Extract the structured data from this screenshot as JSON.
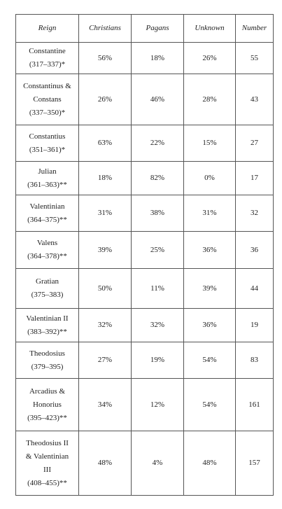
{
  "table": {
    "header": [
      "Reign",
      "Christians",
      "Pagans",
      "Unknown",
      "Number"
    ],
    "rows": [
      {
        "reign": [
          "Constantine",
          "(317–337)*"
        ],
        "cells": [
          "56%",
          "18%",
          "26%",
          "55"
        ]
      },
      {
        "reign": [
          "Constantinus &",
          "Constans",
          "(337–350)*"
        ],
        "cells": [
          "26%",
          "46%",
          "28%",
          "43"
        ]
      },
      {
        "reign": [
          "Constantius",
          "(351–361)*"
        ],
        "cells": [
          "63%",
          "22%",
          "15%",
          "27"
        ]
      },
      {
        "reign": [
          "Julian",
          "(361–363)**"
        ],
        "cells": [
          "18%",
          "82%",
          "0%",
          "17"
        ]
      },
      {
        "reign": [
          "Valentinian",
          "(364–375)**"
        ],
        "cells": [
          "31%",
          "38%",
          "31%",
          "32"
        ]
      },
      {
        "reign": [
          "Valens",
          "(364–378)**"
        ],
        "cells": [
          "39%",
          "25%",
          "36%",
          "36"
        ]
      },
      {
        "reign": [
          "Gratian",
          "(375–383)"
        ],
        "cells": [
          "50%",
          "11%",
          "39%",
          "44"
        ]
      },
      {
        "reign": [
          "Valentinian II",
          "(383–392)**"
        ],
        "cells": [
          "32%",
          "32%",
          "36%",
          "19"
        ]
      },
      {
        "reign": [
          "Theodosius",
          "(379–395)"
        ],
        "cells": [
          "27%",
          "19%",
          "54%",
          "83"
        ]
      },
      {
        "reign": [
          "Arcadius &",
          "Honorius",
          "(395–423)**"
        ],
        "cells": [
          "34%",
          "12%",
          "54%",
          "161"
        ]
      },
      {
        "reign": [
          "Theodosius II",
          "& Valentinian",
          "III",
          "(408–455)**"
        ],
        "cells": [
          "48%",
          "4%",
          "48%",
          "157"
        ]
      }
    ]
  }
}
